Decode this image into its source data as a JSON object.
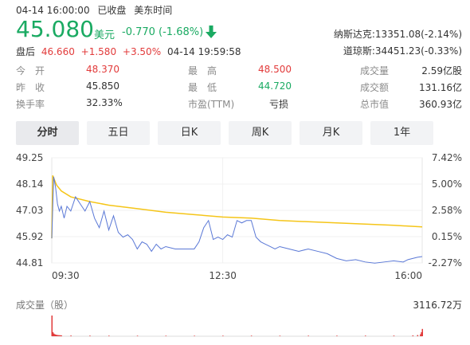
{
  "header": {
    "datetime": "04-14 16:00:00",
    "status": "已收盘",
    "timezone": "美东时间"
  },
  "quote": {
    "price": "45.080",
    "currency": "美元",
    "change": "-0.770 (-1.68%)",
    "direction_icon": "arrow-down-icon"
  },
  "after_hours": {
    "label": "盘后",
    "price": "46.660",
    "change": "+1.580",
    "change_pct": "+3.50%",
    "time": "04-14 19:59:58"
  },
  "indices": [
    {
      "label": "纳斯达克:",
      "value": "13351.08(-2.14%)"
    },
    {
      "label": "道琼斯:",
      "value": "34451.23(-0.33%)"
    }
  ],
  "stats": {
    "open_label": "今　开",
    "open": "48.370",
    "high_label": "最　高",
    "high": "48.500",
    "volume_label": "成交量",
    "volume": "2.59亿股",
    "prev_close_label": "昨　收",
    "prev_close": "45.850",
    "low_label": "最　低",
    "low": "44.720",
    "turnover_label": "成交额",
    "turnover": "131.16亿",
    "turnover_rate_label": "换手率",
    "turnover_rate": "32.33%",
    "pe_label": "市盈(TTM)",
    "pe": "亏损",
    "market_cap_label": "总市值",
    "market_cap": "360.93亿"
  },
  "tabs": [
    "分时",
    "五日",
    "日K",
    "周K",
    "月K",
    "1年"
  ],
  "volume_section": {
    "label": "成交量（股）",
    "max": "3116.72万"
  },
  "colors": {
    "up": "#e23b3b",
    "down": "#1aaa62",
    "price_line": "#5a78d6",
    "avg_line": "#f5c518"
  },
  "chart_data": {
    "type": "line",
    "title": "",
    "x_ticks": [
      "09:30",
      "12:30",
      "16:00"
    ],
    "y_ticks_left": [
      "49.25",
      "48.14",
      "47.03",
      "45.92",
      "44.81"
    ],
    "y_ticks_right": [
      "7.42%",
      "5.00%",
      "2.58%",
      "0.15%",
      "-2.27%"
    ],
    "ylim": [
      44.81,
      49.25
    ],
    "xlim_minutes": [
      0,
      390
    ],
    "series": [
      {
        "values_minutes": [
          0,
          2,
          4,
          6,
          8,
          10,
          13,
          16,
          20,
          25,
          30,
          35,
          40,
          45,
          50,
          55,
          60,
          65,
          70,
          75,
          80,
          85,
          90,
          95,
          100,
          105,
          110,
          115,
          120,
          130,
          140,
          150,
          155,
          160,
          165,
          170,
          175,
          180,
          185,
          190,
          195,
          200,
          205,
          210,
          215,
          220,
          225,
          230,
          235,
          240,
          250,
          260,
          270,
          280,
          290,
          300,
          310,
          320,
          330,
          340,
          350,
          360,
          370,
          375,
          380,
          385,
          390
        ],
        "values": [
          45.85,
          48.45,
          48.0,
          47.3,
          47.0,
          47.2,
          46.7,
          47.2,
          47.0,
          47.6,
          47.3,
          47.0,
          47.4,
          46.7,
          46.3,
          47.0,
          46.2,
          46.8,
          46.1,
          45.9,
          46.0,
          45.8,
          45.4,
          45.7,
          45.6,
          45.3,
          45.6,
          45.4,
          45.5,
          45.4,
          45.4,
          45.4,
          45.7,
          46.3,
          46.6,
          45.8,
          45.9,
          45.8,
          46.0,
          45.9,
          46.6,
          46.5,
          46.6,
          46.6,
          45.9,
          45.7,
          45.6,
          45.5,
          45.4,
          45.5,
          45.4,
          45.3,
          45.4,
          45.3,
          45.2,
          45.0,
          44.9,
          44.95,
          44.85,
          44.8,
          44.85,
          44.9,
          44.85,
          44.95,
          45.0,
          45.05,
          45.08
        ]
      },
      {
        "values_minutes": [
          0,
          1,
          5,
          10,
          20,
          40,
          60,
          90,
          120,
          150,
          180,
          210,
          240,
          270,
          300,
          330,
          360,
          390
        ],
        "values": [
          45.85,
          48.5,
          48.1,
          47.85,
          47.6,
          47.4,
          47.25,
          47.1,
          46.95,
          46.85,
          46.75,
          46.7,
          46.6,
          46.55,
          46.5,
          46.45,
          46.4,
          46.33
        ]
      }
    ],
    "volume": {
      "values_minutes": [
        0,
        1,
        2,
        3,
        4,
        5,
        6,
        7,
        8,
        9,
        10,
        20,
        40,
        60,
        90,
        120,
        150,
        180,
        210,
        240,
        270,
        300,
        330,
        360,
        380,
        385,
        388,
        389,
        390
      ],
      "values": [
        3116.72,
        620,
        400,
        300,
        240,
        200,
        180,
        160,
        150,
        140,
        130,
        110,
        95,
        90,
        85,
        80,
        80,
        85,
        90,
        85,
        85,
        90,
        95,
        100,
        130,
        180,
        300,
        600,
        1100
      ]
    }
  }
}
